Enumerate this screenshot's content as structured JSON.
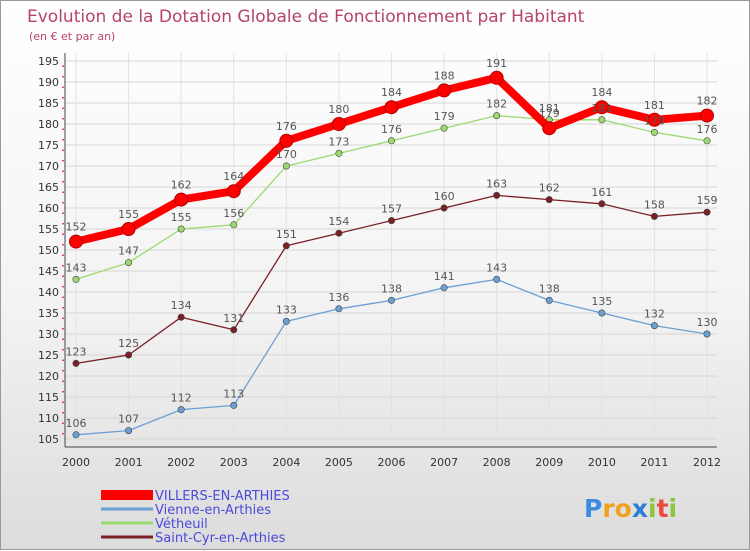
{
  "chart_data": {
    "type": "line",
    "title": "Evolution de la Dotation Globale de Fonctionnement par Habitant",
    "subtitle": "(en € et par an)",
    "xlabel": "",
    "ylabel": "",
    "ylim": [
      105,
      195
    ],
    "yticks": [
      105,
      110,
      115,
      120,
      125,
      130,
      135,
      140,
      145,
      150,
      155,
      160,
      165,
      170,
      175,
      180,
      185,
      190,
      195
    ],
    "grid": true,
    "categories": [
      "2000",
      "2001",
      "2002",
      "2003",
      "2004",
      "2005",
      "2006",
      "2007",
      "2008",
      "2009",
      "2010",
      "2011",
      "2012"
    ],
    "series": [
      {
        "name": "Saint-Cyr-en-Arthies",
        "color": "#7a1f25",
        "values": [
          123,
          125,
          134,
          131,
          151,
          154,
          157,
          160,
          163,
          162,
          161,
          158,
          159
        ]
      },
      {
        "name": "Vétheuil",
        "color": "#9cd96e",
        "values": [
          143,
          147,
          155,
          156,
          170,
          173,
          176,
          179,
          182,
          181,
          181,
          178,
          176
        ]
      },
      {
        "name": "Vienne-en-Arthies",
        "color": "#6aa0d2",
        "values": [
          106,
          107,
          112,
          113,
          133,
          136,
          138,
          141,
          143,
          138,
          135,
          132,
          130
        ]
      },
      {
        "name": "VILLERS-EN-ARTHIES",
        "color": "#ff0000",
        "values": [
          152,
          155,
          162,
          164,
          176,
          180,
          184,
          188,
          191,
          179,
          184,
          181,
          182
        ]
      }
    ],
    "legend": {
      "position": "bottom-left",
      "entries": [
        {
          "name": "VILLERS-EN-ARTHIES",
          "color": "#ff0000",
          "text_color": "#4a4adb"
        },
        {
          "name": "Vienne-en-Arthies",
          "color": "#6aa0d2",
          "text_color": "#4a4adb"
        },
        {
          "name": "Vétheuil",
          "color": "#9cd96e",
          "text_color": "#4a4adb"
        },
        {
          "name": "Saint-Cyr-en-Arthies",
          "color": "#7a1f25",
          "text_color": "#4a4adb"
        }
      ]
    }
  },
  "logo": {
    "letters": [
      {
        "char": "P",
        "color": "#3d8be0"
      },
      {
        "char": "r",
        "color": "#f0a020"
      },
      {
        "char": "o",
        "color": "#f0a020"
      },
      {
        "char": "x",
        "color": "#2c7fd6"
      },
      {
        "char": "i",
        "color": "#8cc63f"
      },
      {
        "char": "t",
        "color": "#e84b3c"
      },
      {
        "char": "i",
        "color": "#8cc63f"
      }
    ]
  }
}
